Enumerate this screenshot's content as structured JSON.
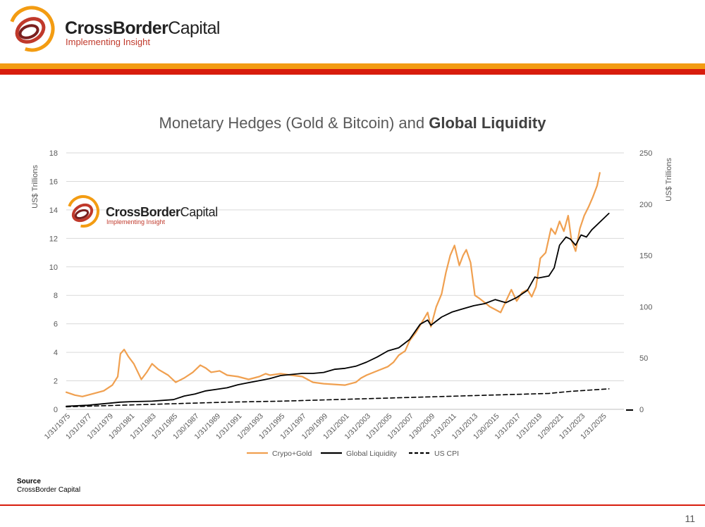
{
  "header": {
    "brand_bold": "CrossBorder",
    "brand_light": "Capital",
    "tagline": "Implementing Insight"
  },
  "chart_title": {
    "regular": "Monetary Hedges (Gold & Bitcoin) and",
    "bold": "Global Liquidity"
  },
  "colors": {
    "accent_orange": "#f39c12",
    "accent_red": "#d81d0d",
    "series_crypto_gold": "#f0a050",
    "series_liquidity": "#000000",
    "series_cpi": "#000000"
  },
  "chart_data": {
    "type": "line",
    "title": "Monetary Hedges (Gold & Bitcoin) and Global Liquidity",
    "ylabel": "US$ Trillions",
    "y2label": "US$ Trillions",
    "ylim": [
      0,
      18
    ],
    "y2lim": [
      0,
      250
    ],
    "yticks": [
      0,
      2,
      4,
      6,
      8,
      10,
      12,
      14,
      16,
      18
    ],
    "y2ticks": [
      0,
      50,
      100,
      150,
      200,
      250
    ],
    "xlim": [
      1975,
      2027
    ],
    "xticks": [
      "1/31/1975",
      "1/31/1977",
      "1/31/1979",
      "1/30/1981",
      "1/31/1983",
      "1/31/1985",
      "1/30/1987",
      "1/31/1989",
      "1/31/1991",
      "1/29/1993",
      "1/31/1995",
      "1/31/1997",
      "1/29/1999",
      "1/31/2001",
      "1/31/2003",
      "1/31/2005",
      "1/31/2007",
      "1/30/2009",
      "1/31/2011",
      "1/31/2013",
      "1/30/2015",
      "1/31/2017",
      "1/31/2019",
      "1/29/2021",
      "1/31/2023",
      "1/31/2025"
    ],
    "legend_position": "bottom",
    "grid": true,
    "series": [
      {
        "name": "Crypo+Gold",
        "axis": "left",
        "style": "solid",
        "x": [
          1975,
          1975.8,
          1976.5,
          1977.5,
          1978.5,
          1979.3,
          1979.8,
          1980.05,
          1980.4,
          1980.8,
          1981.3,
          1982,
          1982.5,
          1983,
          1983.6,
          1984.5,
          1985.2,
          1986,
          1986.8,
          1987.5,
          1988,
          1988.5,
          1989.3,
          1990,
          1991,
          1992,
          1993,
          1993.6,
          1994,
          1995,
          1996,
          1997,
          1998,
          1999,
          2000,
          2001,
          2002,
          2002.5,
          2003,
          2004,
          2005,
          2005.5,
          2006,
          2006.6,
          2007,
          2007.6,
          2008,
          2008.7,
          2009,
          2009.5,
          2010,
          2010.4,
          2010.8,
          2011.2,
          2011.65,
          2012,
          2012.3,
          2012.7,
          2013.1,
          2013.5,
          2014,
          2014.5,
          2015,
          2015.5,
          2016,
          2016.5,
          2017,
          2017.5,
          2018,
          2018.4,
          2018.8,
          2019.2,
          2019.7,
          2020.2,
          2020.6,
          2021,
          2021.4,
          2021.8,
          2022.1,
          2022.5,
          2022.9,
          2023.3,
          2023.7,
          2024.1,
          2024.5,
          2024.75
        ],
        "y": [
          1.2,
          1.0,
          0.9,
          1.1,
          1.3,
          1.7,
          2.3,
          3.9,
          4.2,
          3.7,
          3.2,
          2.1,
          2.6,
          3.2,
          2.8,
          2.4,
          1.9,
          2.2,
          2.6,
          3.1,
          2.9,
          2.6,
          2.7,
          2.4,
          2.3,
          2.1,
          2.3,
          2.5,
          2.4,
          2.5,
          2.4,
          2.3,
          1.9,
          1.8,
          1.75,
          1.7,
          1.9,
          2.2,
          2.4,
          2.7,
          3.0,
          3.3,
          3.8,
          4.1,
          4.8,
          5.4,
          5.9,
          6.8,
          5.8,
          7.2,
          8.1,
          9.6,
          10.8,
          11.5,
          10.1,
          10.8,
          11.2,
          10.3,
          8.0,
          7.8,
          7.5,
          7.2,
          7.0,
          6.8,
          7.6,
          8.4,
          7.6,
          8.2,
          8.4,
          7.9,
          8.6,
          10.6,
          11.0,
          12.7,
          12.3,
          13.2,
          12.5,
          13.6,
          11.9,
          11.1,
          12.7,
          13.6,
          14.2,
          14.9,
          15.7,
          16.6
        ]
      },
      {
        "name": "Global Liquidity",
        "axis": "right",
        "style": "solid",
        "x": [
          1975,
          1977,
          1979,
          1980,
          1981,
          1983,
          1985,
          1986,
          1987,
          1988,
          1989,
          1990,
          1991,
          1992,
          1993,
          1994,
          1995,
          1996,
          1997,
          1998,
          1999,
          2000,
          2001,
          2002,
          2003,
          2004,
          2005,
          2006,
          2007,
          2008,
          2008.7,
          2009,
          2010,
          2011,
          2012,
          2013,
          2014,
          2015,
          2016,
          2017,
          2018,
          2018.7,
          2019,
          2020,
          2020.5,
          2021,
          2021.6,
          2022,
          2022.5,
          2023,
          2023.5,
          2024,
          2025,
          2025.6
        ],
        "y": [
          3,
          4,
          6,
          7,
          7.5,
          8,
          9.5,
          13,
          15,
          18,
          19.5,
          21,
          24,
          26,
          28,
          30,
          33,
          34,
          35,
          35,
          36,
          39,
          40,
          42,
          46,
          51,
          57,
          60,
          68,
          83,
          87,
          82,
          90,
          95,
          98,
          101,
          103,
          107,
          104,
          109,
          116,
          129,
          128,
          130,
          138,
          160,
          168,
          166,
          160,
          170,
          168,
          175,
          185,
          191
        ]
      },
      {
        "name": "US CPI",
        "axis": "right",
        "style": "dashed",
        "x": [
          1975,
          1980,
          1985,
          1990,
          1995,
          2000,
          2005,
          2010,
          2015,
          2020,
          2022,
          2025.6
        ],
        "y": [
          2.5,
          4,
          5.5,
          7,
          8,
          9.5,
          11,
          12.5,
          14,
          15.5,
          17.5,
          20
        ]
      }
    ]
  },
  "watermark": {
    "brand_bold": "CrossBorder",
    "brand_light": "Capital",
    "tagline": "Implementing Insight"
  },
  "source": {
    "label": "Source",
    "text": "CrossBorder Capital"
  },
  "page_number": "11"
}
